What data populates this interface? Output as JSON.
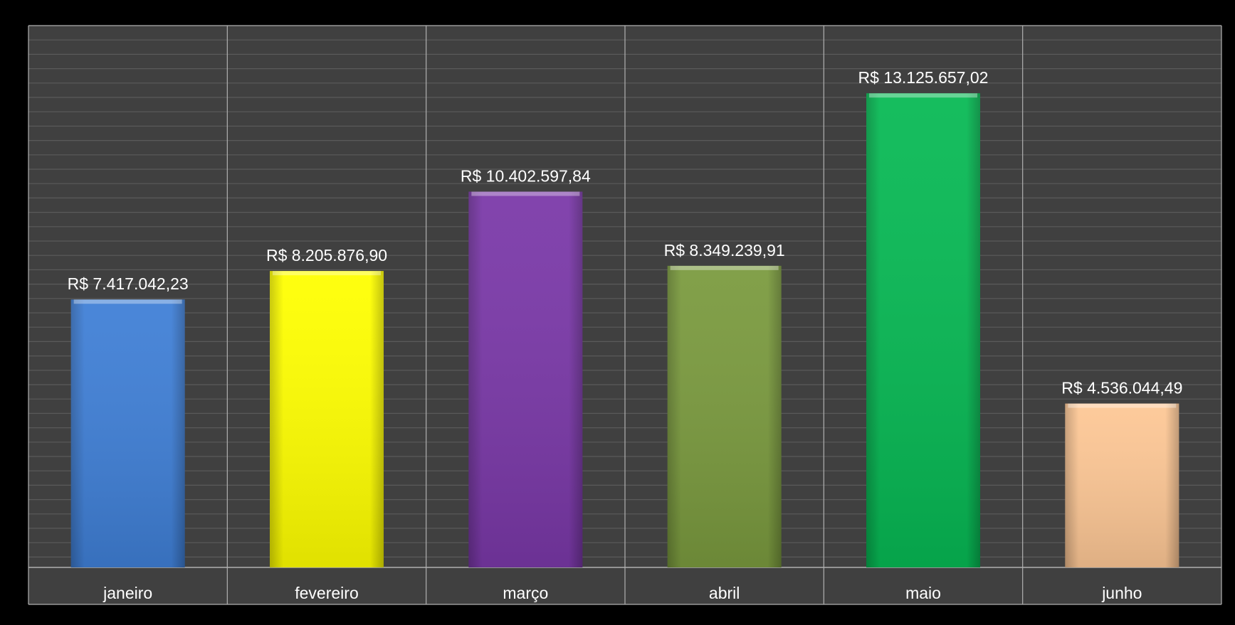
{
  "chart_data": {
    "type": "bar",
    "title": "",
    "xlabel": "",
    "ylabel": "",
    "categories": [
      "janeiro",
      "fevereiro",
      "março",
      "abril",
      "maio",
      "junho"
    ],
    "values": [
      7417042.23,
      8205876.9,
      10402597.84,
      8349239.91,
      13125657.02,
      4536044.49
    ],
    "value_labels": [
      "R$ 7.417.042,23",
      "R$ 8.205.876,90",
      "R$ 10.402.597,84",
      "R$ 8.349.239,91",
      "R$ 13.125.657,02",
      "R$ 4.536.044,49"
    ],
    "colors": [
      "#3f7fd6",
      "#ffff00",
      "#7a38a8",
      "#7a9a3e",
      "#07b954",
      "#fdc795"
    ],
    "ylim": [
      0,
      15000000
    ],
    "grid": true,
    "legend": "none"
  },
  "theme": {
    "page_background": "#000000",
    "plot_background": "#404040",
    "major_grid": "#b0b0b0",
    "minor_grid": "#5a5a5a",
    "label_color": "#ffffff"
  }
}
